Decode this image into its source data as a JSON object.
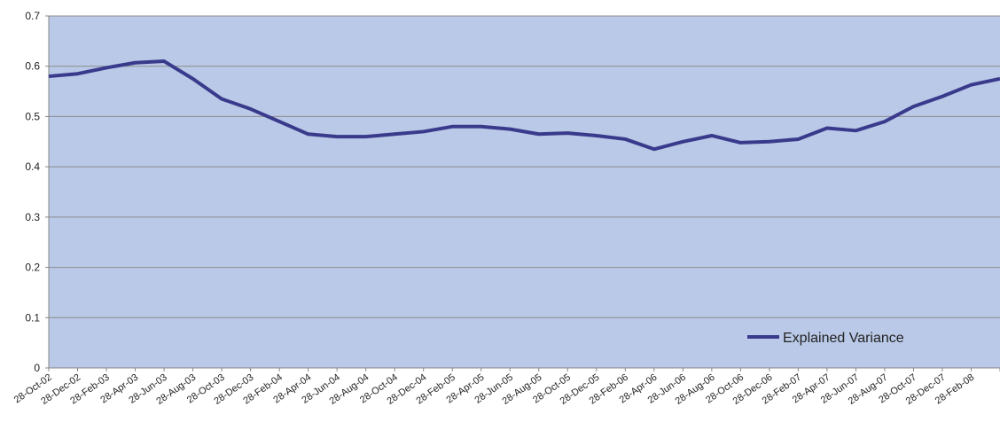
{
  "chart_data": {
    "type": "line",
    "categories": [
      "28-Oct-02",
      "28-Dec-02",
      "28-Feb-03",
      "28-Apr-03",
      "28-Jun-03",
      "28-Aug-03",
      "28-Oct-03",
      "28-Dec-03",
      "28-Feb-04",
      "28-Apr-04",
      "28-Jun-04",
      "28-Aug-04",
      "28-Oct-04",
      "28-Dec-04",
      "28-Feb-05",
      "28-Apr-05",
      "28-Jun-05",
      "28-Aug-05",
      "28-Oct-05",
      "28-Dec-05",
      "28-Feb-06",
      "28-Apr-06",
      "28-Jun-06",
      "28-Aug-06",
      "28-Oct-06",
      "28-Dec-06",
      "28-Feb-07",
      "28-Apr-07",
      "28-Jun-07",
      "28-Aug-07",
      "28-Oct-07",
      "28-Dec-07",
      "28-Feb-08",
      null
    ],
    "series": [
      {
        "name": "Explained Variance",
        "color": "#3a3a8c",
        "values": [
          0.58,
          0.585,
          0.597,
          0.607,
          0.61,
          0.575,
          0.535,
          0.515,
          0.49,
          0.465,
          0.46,
          0.46,
          0.465,
          0.47,
          0.48,
          0.48,
          0.475,
          0.465,
          0.467,
          0.462,
          0.455,
          0.435,
          0.45,
          0.462,
          0.448,
          0.45,
          0.455,
          0.477,
          0.472,
          0.49,
          0.52,
          0.54,
          0.563,
          0.575
        ]
      }
    ],
    "ylim": [
      0,
      0.7
    ],
    "yticks": [
      0,
      0.1,
      0.2,
      0.3,
      0.4,
      0.5,
      0.6,
      0.7
    ],
    "grid": true,
    "legend": "lower-right",
    "plot_background": "#b9c9e7"
  }
}
